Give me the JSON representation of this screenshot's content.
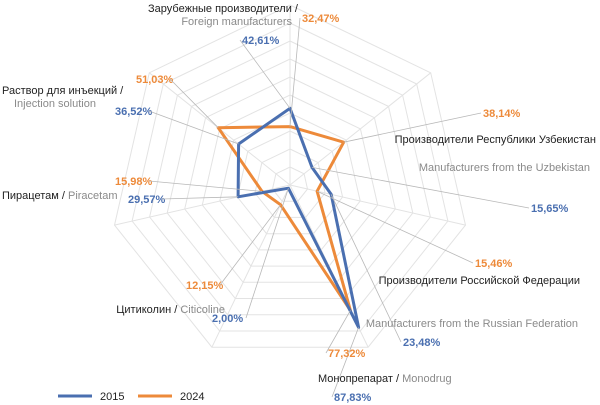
{
  "chart_data": {
    "type": "radar",
    "categories": [
      {
        "ru": "Зарубежные производители",
        "sep": " / ",
        "en": "Foreign manufacturers"
      },
      {
        "ru": "Производители Республики Узбекистан",
        "sep": " / ",
        "en": "Manufacturers from the Uzbekistan"
      },
      {
        "ru": "Производители Российской Федерации",
        "sep": " / ",
        "en": "Manufacturers from the Russian Federation"
      },
      {
        "ru": "Монопрепарат",
        "sep": " / ",
        "en": "Monodrug"
      },
      {
        "ru": "Цитиколин",
        "sep": " / ",
        "en": "Citicoline"
      },
      {
        "ru": "Пирацетам",
        "sep": " / ",
        "en": "Piracetam"
      },
      {
        "ru": "Раствор для инъекций",
        "sep": " / ",
        "en": "Injection solution"
      }
    ],
    "series": [
      {
        "name": "2015",
        "color": "#4a6fb0",
        "values": [
          42.61,
          15.65,
          23.48,
          87.83,
          2.0,
          29.57,
          36.52
        ],
        "labels": [
          "42,61%",
          "15,65%",
          "23,48%",
          "87,83%",
          "2,00%",
          "29,57%",
          "36,52%"
        ]
      },
      {
        "name": "2024",
        "color": "#ed8a3a",
        "values": [
          32.47,
          38.14,
          15.46,
          77.32,
          12.15,
          15.98,
          51.03
        ],
        "labels": [
          "32,47%",
          "38,14%",
          "15,46%",
          "77,32%",
          "12,15%",
          "15,98%",
          "51,03%"
        ]
      }
    ],
    "rmax": 100,
    "grid_rings": 10,
    "legend_position": "bottom-left"
  }
}
